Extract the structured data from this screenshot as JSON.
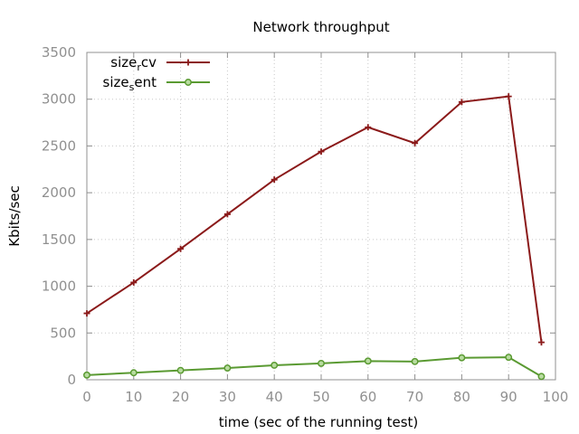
{
  "chart_data": {
    "type": "line",
    "title": "Network throughput",
    "xlabel": "time (sec of the running test)",
    "ylabel": "Kbits/sec",
    "xlim": [
      0,
      100
    ],
    "ylim": [
      0,
      3500
    ],
    "xticks": [
      0,
      10,
      20,
      30,
      40,
      50,
      60,
      70,
      80,
      90,
      100
    ],
    "yticks": [
      0,
      500,
      1000,
      1500,
      2000,
      2500,
      3000,
      3500
    ],
    "grid": true,
    "legend_position": "top-left",
    "series": [
      {
        "legend_main": "size",
        "legend_sub": "r",
        "legend_rest": "cv",
        "color": "#8b1a1a",
        "marker": "plus",
        "x": [
          0,
          10,
          20,
          30,
          40,
          50,
          60,
          70,
          80,
          90,
          97
        ],
        "y": [
          710,
          1040,
          1400,
          1770,
          2140,
          2440,
          2700,
          2530,
          2970,
          3030,
          400
        ]
      },
      {
        "legend_main": "size",
        "legend_sub": "s",
        "legend_rest": "ent",
        "color": "#5a9a32",
        "marker": "circle",
        "x": [
          0,
          10,
          20,
          30,
          40,
          50,
          60,
          70,
          80,
          90,
          97
        ],
        "y": [
          50,
          75,
          100,
          125,
          155,
          175,
          200,
          195,
          235,
          240,
          35
        ]
      }
    ]
  }
}
